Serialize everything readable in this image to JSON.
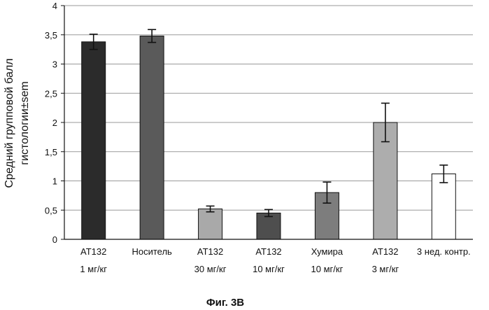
{
  "chart_data": {
    "type": "bar",
    "title": "",
    "ylabel_lines": [
      "Средний групповой балл",
      "гистологии±sem"
    ],
    "xlabel": "",
    "ylim": [
      0,
      4
    ],
    "yticks": [
      "0",
      "0,5",
      "1",
      "1,5",
      "2",
      "2,5",
      "3",
      "3,5",
      "4"
    ],
    "grid": true,
    "categories": [
      {
        "line1": "AT132",
        "line2": "1 мг/кг"
      },
      {
        "line1": "Носитель",
        "line2": ""
      },
      {
        "line1": "AT132",
        "line2": "30 мг/кг"
      },
      {
        "line1": "AT132",
        "line2": "10 мг/кг"
      },
      {
        "line1": "Хумира",
        "line2": "10 мг/кг"
      },
      {
        "line1": "AT132",
        "line2": "3 мг/кг"
      },
      {
        "line1": "3 нед. контр.",
        "line2": ""
      }
    ],
    "values": [
      3.38,
      3.48,
      0.52,
      0.45,
      0.8,
      2.0,
      1.12
    ],
    "errors": [
      0.13,
      0.11,
      0.05,
      0.06,
      0.18,
      0.33,
      0.15
    ],
    "bar_colors": [
      "#2b2b2b",
      "#5a5a5a",
      "#a9a9a9",
      "#4e4e4e",
      "#7d7d7d",
      "#adadad",
      "#ffffff"
    ]
  },
  "caption": "Фиг. 3В"
}
